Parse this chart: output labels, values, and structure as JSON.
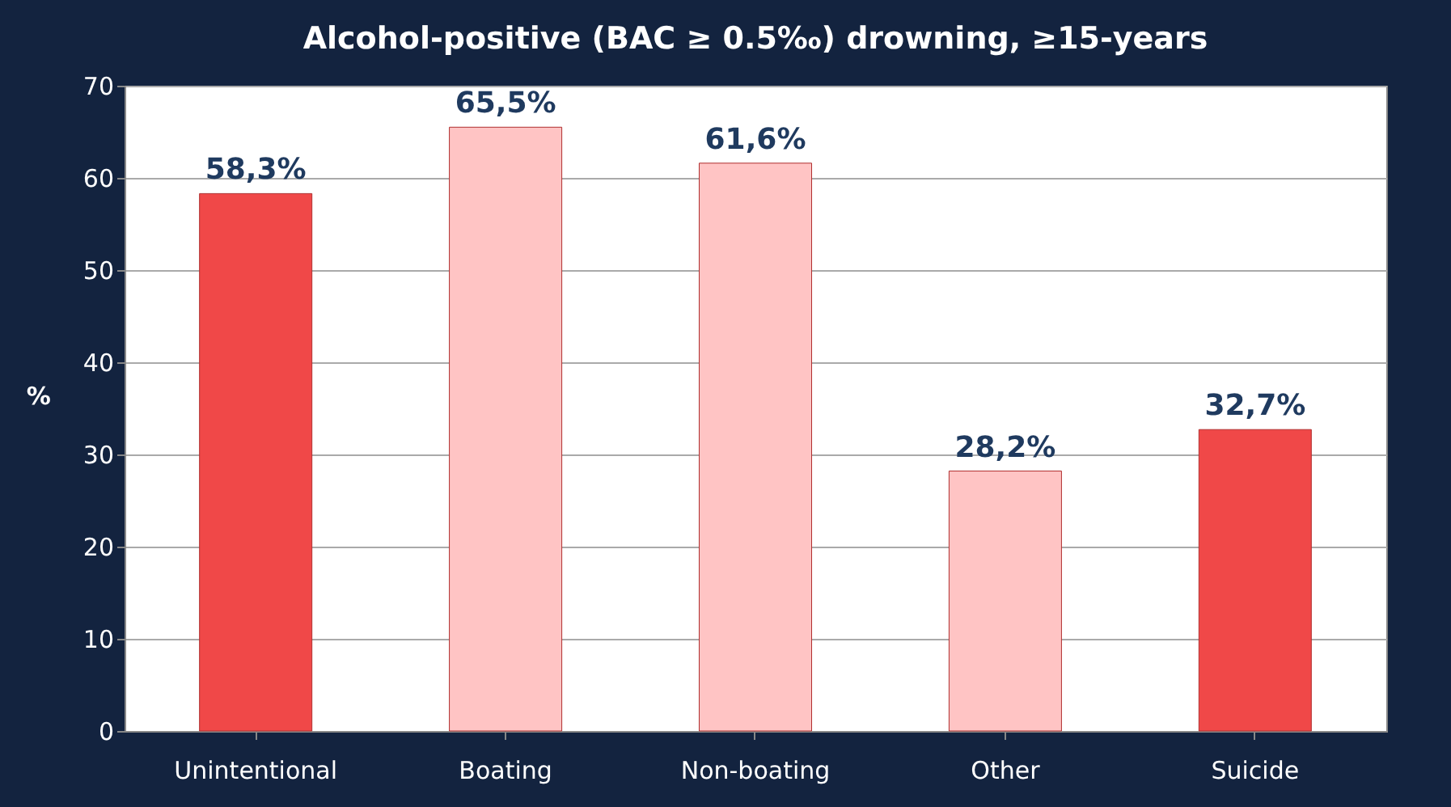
{
  "chart_data": {
    "type": "bar",
    "title": "Alcohol-positive (BAC ≥ 0.5‰) drowning, ≥15-years",
    "categories": [
      "Unintentional",
      "Boating",
      "Non-boating",
      "Other",
      "Suicide"
    ],
    "values": [
      58.3,
      65.5,
      61.6,
      28.2,
      32.7
    ],
    "colors": [
      "#f04848",
      "#ffc4c4",
      "#ffc4c4",
      "#ffc4c4",
      "#f04848"
    ],
    "value_labels": [
      "58,3%",
      "65,5%",
      "61,6%",
      "28,2%",
      "32,7%"
    ],
    "ylabel": "%",
    "ylim": [
      0,
      70
    ],
    "yticks": [
      0,
      10,
      20,
      30,
      40,
      50,
      60,
      70
    ],
    "grid": "y"
  }
}
